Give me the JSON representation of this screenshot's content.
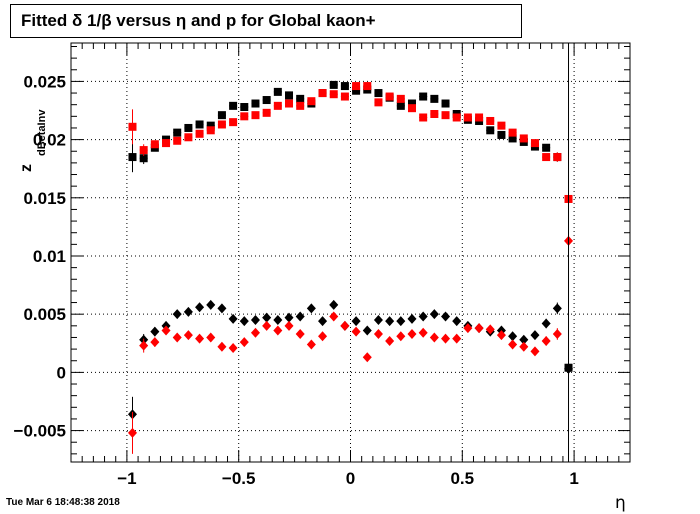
{
  "title": "Fitted δ 1/β versus η and p for Global kaon+",
  "footer": "Tue Mar  6 18:48:38 2018",
  "y_axis_label": {
    "main": "z",
    "sub": "dBetaInv"
  },
  "colors": {
    "series1": "#000000",
    "series2": "#ff0000"
  },
  "chart_data": {
    "type": "scatter",
    "title": "Fitted δ 1/β versus η and p for Global kaon+",
    "xlabel": "η",
    "ylabel": "z dBetaInv",
    "xlim": [
      -1.25,
      1.25
    ],
    "ylim": [
      -0.0077,
      0.0283
    ],
    "grid": true,
    "x_ticks": [
      -1,
      -0.5,
      0,
      0.5,
      1
    ],
    "x_tick_labels": [
      "−1",
      "−0.5",
      "0",
      "0.5",
      "1"
    ],
    "y_ticks": [
      -0.005,
      0,
      0.005,
      0.01,
      0.015,
      0.02,
      0.025
    ],
    "y_tick_labels": [
      "−0.005",
      "0",
      "0.005",
      "0.01",
      "0.015",
      "0.02",
      "0.025"
    ],
    "x": [
      -0.975,
      -0.925,
      -0.875,
      -0.825,
      -0.775,
      -0.725,
      -0.675,
      -0.625,
      -0.575,
      -0.525,
      -0.475,
      -0.425,
      -0.375,
      -0.325,
      -0.275,
      -0.225,
      -0.175,
      -0.125,
      -0.075,
      -0.025,
      0.025,
      0.075,
      0.125,
      0.175,
      0.225,
      0.275,
      0.325,
      0.375,
      0.425,
      0.475,
      0.525,
      0.575,
      0.625,
      0.675,
      0.725,
      0.775,
      0.825,
      0.875,
      0.925,
      0.975
    ],
    "series": [
      {
        "marker": "square",
        "color": "#000000",
        "values": [
          0.0185,
          0.0184,
          0.0193,
          0.02,
          0.0206,
          0.021,
          0.0213,
          0.0212,
          0.0221,
          0.0229,
          0.0228,
          0.0231,
          0.0234,
          0.0241,
          0.0238,
          0.0235,
          0.0231,
          0.024,
          0.0247,
          0.0246,
          0.0242,
          0.0243,
          0.024,
          0.0236,
          0.0229,
          0.0231,
          0.0237,
          0.0235,
          0.0231,
          0.0222,
          0.0217,
          0.0216,
          0.0208,
          0.0204,
          0.0201,
          0.0198,
          0.0194,
          0.0193,
          0.0185,
          0.0004
        ],
        "errors": [
          0.0013,
          0.0005,
          0.0003,
          0.0003,
          0.0002,
          0.0002,
          0.0002,
          0.0002,
          0.0002,
          0.0002,
          0.0002,
          0.0002,
          0.0002,
          0.0002,
          0.0002,
          0.0002,
          0.0002,
          0.0002,
          0.0002,
          0.0002,
          0.0002,
          0.0002,
          0.0002,
          0.0002,
          0.0002,
          0.0002,
          0.0002,
          0.0002,
          0.0002,
          0.0002,
          0.0002,
          0.0002,
          0.0002,
          0.0002,
          0.0002,
          0.0002,
          0.0002,
          0.0003,
          0.0004,
          0.0004
        ]
      },
      {
        "marker": "square",
        "color": "#ff0000",
        "values": [
          0.0211,
          0.0191,
          0.0196,
          0.0197,
          0.0199,
          0.0202,
          0.0205,
          0.0208,
          0.0213,
          0.0215,
          0.022,
          0.0221,
          0.0223,
          0.0229,
          0.0231,
          0.0229,
          0.0233,
          0.024,
          0.0239,
          0.0237,
          0.0246,
          0.0246,
          0.0232,
          0.0237,
          0.0235,
          0.0227,
          0.0219,
          0.0222,
          0.0221,
          0.0219,
          0.0219,
          0.0219,
          0.0216,
          0.0212,
          0.0206,
          0.0201,
          0.0197,
          0.0185,
          0.0185,
          0.0149
        ],
        "errors": [
          0.0015,
          0.0005,
          0.0003,
          0.0003,
          0.0002,
          0.0002,
          0.0002,
          0.0002,
          0.0002,
          0.0002,
          0.0002,
          0.0002,
          0.0002,
          0.0002,
          0.0002,
          0.0002,
          0.0002,
          0.0002,
          0.0002,
          0.0002,
          0.0002,
          0.0002,
          0.0002,
          0.0002,
          0.0002,
          0.0002,
          0.0002,
          0.0002,
          0.0002,
          0.0002,
          0.0002,
          0.0002,
          0.0002,
          0.0002,
          0.0002,
          0.0002,
          0.0002,
          0.0003,
          0.0004,
          0.0004
        ]
      },
      {
        "marker": "diamond",
        "color": "#000000",
        "values": [
          -0.0036,
          0.0028,
          0.0035,
          0.004,
          0.005,
          0.0052,
          0.0056,
          0.0058,
          0.0055,
          0.0046,
          0.0044,
          0.0045,
          0.0047,
          0.0045,
          0.0047,
          0.0048,
          0.0055,
          0.0044,
          0.0058,
          0.004,
          0.0044,
          0.0036,
          0.0045,
          0.0044,
          0.0044,
          0.0046,
          0.0048,
          0.005,
          0.0048,
          0.0044,
          0.004,
          0.0038,
          0.0035,
          0.0036,
          0.0031,
          0.0028,
          0.0032,
          0.0042,
          0.0055,
          0.0003
        ],
        "errors": [
          0.0015,
          0.0005,
          0.0004,
          0.0003,
          0.0003,
          0.0003,
          0.0003,
          0.0003,
          0.0003,
          0.0003,
          0.0003,
          0.0003,
          0.0003,
          0.0003,
          0.0003,
          0.0003,
          0.0003,
          0.0003,
          0.0003,
          0.0003,
          0.0003,
          0.0003,
          0.0003,
          0.0003,
          0.0003,
          0.0003,
          0.0003,
          0.0003,
          0.0003,
          0.0003,
          0.0003,
          0.0003,
          0.0003,
          0.0003,
          0.0003,
          0.0003,
          0.0003,
          0.0004,
          0.0005,
          0.0004
        ]
      },
      {
        "marker": "diamond",
        "color": "#ff0000",
        "values": [
          -0.0052,
          0.0023,
          0.0026,
          0.0036,
          0.003,
          0.0032,
          0.0029,
          0.003,
          0.0022,
          0.0021,
          0.0026,
          0.0034,
          0.004,
          0.0036,
          0.004,
          0.0033,
          0.0024,
          0.0031,
          0.0048,
          0.004,
          0.0035,
          0.0013,
          0.0033,
          0.0027,
          0.0031,
          0.0033,
          0.0034,
          0.003,
          0.0029,
          0.0029,
          0.0038,
          0.0038,
          0.0037,
          0.0032,
          0.0024,
          0.0022,
          0.0018,
          0.0027,
          0.0033,
          0.0113
        ],
        "errors": [
          0.0018,
          0.0006,
          0.0004,
          0.0003,
          0.0003,
          0.0003,
          0.0003,
          0.0003,
          0.0003,
          0.0003,
          0.0003,
          0.0003,
          0.0003,
          0.0003,
          0.0003,
          0.0003,
          0.0003,
          0.0003,
          0.0003,
          0.0003,
          0.0003,
          0.0003,
          0.0003,
          0.0003,
          0.0003,
          0.0003,
          0.0003,
          0.0003,
          0.0003,
          0.0003,
          0.0003,
          0.0003,
          0.0003,
          0.0003,
          0.0003,
          0.0003,
          0.0003,
          0.0004,
          0.0005,
          0.0005
        ]
      }
    ]
  }
}
